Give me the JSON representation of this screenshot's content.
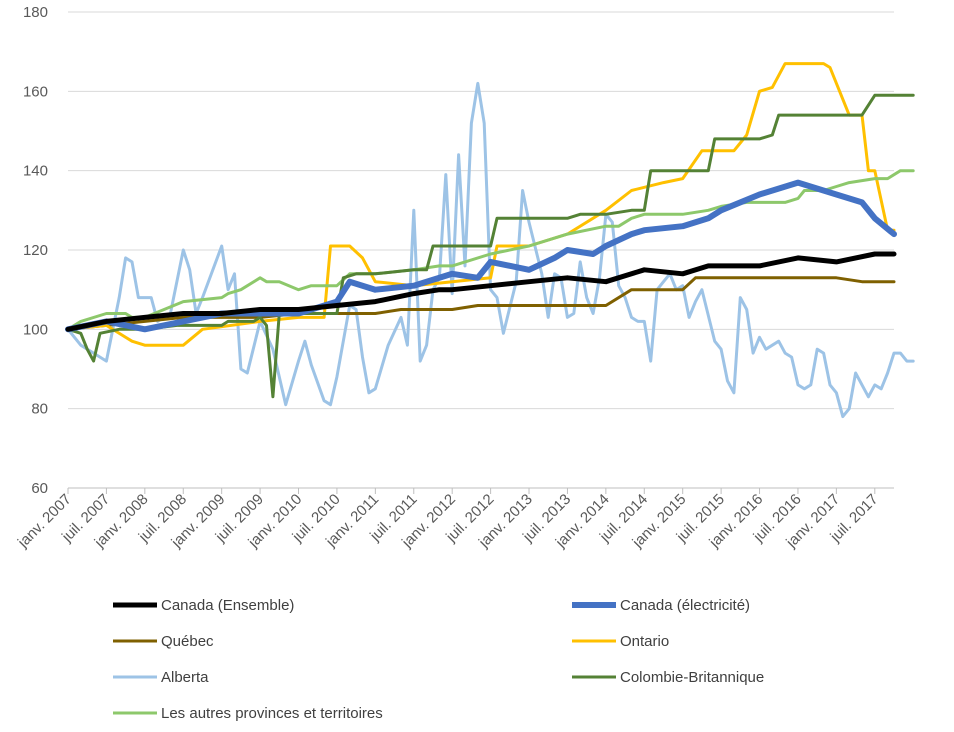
{
  "chart_data": {
    "type": "line",
    "title": "",
    "xlabel": "",
    "ylabel": "",
    "ylim": [
      60,
      180
    ],
    "y_ticks": [
      60,
      80,
      100,
      120,
      140,
      160,
      180
    ],
    "grid": "horizontal",
    "legend_position": "bottom",
    "x_start": "janv. 2007",
    "x_end": "oct. 2017",
    "x_tick_labels": [
      "janv. 2007",
      "juil. 2007",
      "janv. 2008",
      "juil. 2008",
      "janv. 2009",
      "juil. 2009",
      "janv. 2010",
      "juil. 2010",
      "janv. 2011",
      "juil. 2011",
      "janv. 2012",
      "juil. 2012",
      "janv. 2013",
      "juil. 2013",
      "janv. 2014",
      "juil. 2014",
      "janv. 2015",
      "juil. 2015",
      "janv. 2016",
      "juil. 2016",
      "janv. 2017",
      "juil. 2017"
    ],
    "series": [
      {
        "name": "Canada (Ensemble)",
        "color": "#000000",
        "width": 5,
        "points": [
          [
            0,
            100
          ],
          [
            6,
            102
          ],
          [
            12,
            103
          ],
          [
            18,
            104
          ],
          [
            24,
            104
          ],
          [
            30,
            105
          ],
          [
            36,
            105
          ],
          [
            42,
            106
          ],
          [
            48,
            107
          ],
          [
            54,
            109
          ],
          [
            58,
            110
          ],
          [
            60,
            110
          ],
          [
            66,
            111
          ],
          [
            72,
            112
          ],
          [
            78,
            113
          ],
          [
            84,
            112
          ],
          [
            90,
            115
          ],
          [
            96,
            114
          ],
          [
            100,
            116
          ],
          [
            108,
            116
          ],
          [
            114,
            118
          ],
          [
            120,
            117
          ],
          [
            126,
            119
          ],
          [
            129,
            119
          ]
        ]
      },
      {
        "name": "Canada (électricité)",
        "color": "#4472C4",
        "width": 6,
        "points": [
          [
            0,
            100
          ],
          [
            6,
            102
          ],
          [
            12,
            100
          ],
          [
            18,
            102
          ],
          [
            24,
            104
          ],
          [
            30,
            104
          ],
          [
            36,
            104
          ],
          [
            42,
            107
          ],
          [
            44,
            112
          ],
          [
            48,
            110
          ],
          [
            54,
            111
          ],
          [
            60,
            114
          ],
          [
            64,
            113
          ],
          [
            66,
            117
          ],
          [
            72,
            115
          ],
          [
            76,
            118
          ],
          [
            78,
            120
          ],
          [
            82,
            119
          ],
          [
            84,
            121
          ],
          [
            88,
            124
          ],
          [
            90,
            125
          ],
          [
            96,
            126
          ],
          [
            100,
            128
          ],
          [
            102,
            130
          ],
          [
            108,
            134
          ],
          [
            114,
            137
          ],
          [
            120,
            134
          ],
          [
            124,
            132
          ],
          [
            126,
            128
          ],
          [
            129,
            124
          ]
        ]
      },
      {
        "name": "Québec",
        "color": "#7F6000",
        "width": 3,
        "points": [
          [
            0,
            100
          ],
          [
            6,
            101
          ],
          [
            12,
            102
          ],
          [
            18,
            103
          ],
          [
            24,
            103
          ],
          [
            30,
            103
          ],
          [
            36,
            104
          ],
          [
            42,
            104
          ],
          [
            48,
            104
          ],
          [
            52,
            105
          ],
          [
            60,
            105
          ],
          [
            64,
            106
          ],
          [
            72,
            106
          ],
          [
            78,
            106
          ],
          [
            84,
            106
          ],
          [
            88,
            110
          ],
          [
            96,
            110
          ],
          [
            98,
            113
          ],
          [
            108,
            113
          ],
          [
            114,
            113
          ],
          [
            120,
            113
          ],
          [
            124,
            112
          ],
          [
            129,
            112
          ]
        ]
      },
      {
        "name": "Ontario",
        "color": "#FFC000",
        "width": 3,
        "points": [
          [
            0,
            100
          ],
          [
            6,
            101
          ],
          [
            10,
            97
          ],
          [
            12,
            96
          ],
          [
            18,
            96
          ],
          [
            21,
            100
          ],
          [
            30,
            102
          ],
          [
            36,
            103
          ],
          [
            40,
            103
          ],
          [
            41,
            121
          ],
          [
            44,
            121
          ],
          [
            46,
            118
          ],
          [
            48,
            112
          ],
          [
            54,
            111
          ],
          [
            60,
            112
          ],
          [
            66,
            113
          ],
          [
            67,
            121
          ],
          [
            72,
            121
          ],
          [
            78,
            124
          ],
          [
            84,
            130
          ],
          [
            88,
            135
          ],
          [
            93,
            137
          ],
          [
            96,
            138
          ],
          [
            99,
            145
          ],
          [
            104,
            145
          ],
          [
            106,
            149
          ],
          [
            108,
            160
          ],
          [
            110,
            161
          ],
          [
            112,
            167
          ],
          [
            118,
            167
          ],
          [
            119,
            166
          ],
          [
            122,
            154
          ],
          [
            124,
            154
          ],
          [
            125,
            140
          ],
          [
            126,
            140
          ],
          [
            128,
            125
          ],
          [
            129,
            125
          ]
        ]
      },
      {
        "name": "Alberta",
        "color": "#9DC3E6",
        "width": 3,
        "points": [
          [
            0,
            100
          ],
          [
            2,
            96
          ],
          [
            4,
            94
          ],
          [
            6,
            92
          ],
          [
            8,
            108
          ],
          [
            9,
            118
          ],
          [
            10,
            117
          ],
          [
            11,
            108
          ],
          [
            13,
            108
          ],
          [
            14,
            102
          ],
          [
            16,
            104
          ],
          [
            18,
            120
          ],
          [
            19,
            115
          ],
          [
            20,
            104
          ],
          [
            21,
            108
          ],
          [
            24,
            121
          ],
          [
            25,
            110
          ],
          [
            26,
            114
          ],
          [
            27,
            90
          ],
          [
            28,
            89
          ],
          [
            30,
            102
          ],
          [
            32,
            95
          ],
          [
            34,
            81
          ],
          [
            36,
            92
          ],
          [
            37,
            97
          ],
          [
            38,
            91
          ],
          [
            40,
            82
          ],
          [
            41,
            81
          ],
          [
            42,
            88
          ],
          [
            44,
            106
          ],
          [
            45,
            105
          ],
          [
            46,
            93
          ],
          [
            47,
            84
          ],
          [
            48,
            85
          ],
          [
            50,
            96
          ],
          [
            52,
            103
          ],
          [
            53,
            96
          ],
          [
            54,
            130
          ],
          [
            55,
            92
          ],
          [
            56,
            96
          ],
          [
            57,
            110
          ],
          [
            58,
            113
          ],
          [
            59,
            139
          ],
          [
            60,
            109
          ],
          [
            61,
            144
          ],
          [
            62,
            116
          ],
          [
            63,
            152
          ],
          [
            64,
            162
          ],
          [
            65,
            152
          ],
          [
            66,
            110
          ],
          [
            67,
            108
          ],
          [
            68,
            99
          ],
          [
            70,
            112
          ],
          [
            71,
            135
          ],
          [
            72,
            127
          ],
          [
            74,
            114
          ],
          [
            75,
            103
          ],
          [
            76,
            114
          ],
          [
            77,
            113
          ],
          [
            78,
            103
          ],
          [
            79,
            104
          ],
          [
            80,
            117
          ],
          [
            81,
            108
          ],
          [
            82,
            104
          ],
          [
            83,
            113
          ],
          [
            84,
            129
          ],
          [
            85,
            127
          ],
          [
            86,
            111
          ],
          [
            87,
            108
          ],
          [
            88,
            103
          ],
          [
            89,
            102
          ],
          [
            90,
            102
          ],
          [
            91,
            92
          ],
          [
            92,
            110
          ],
          [
            93,
            112
          ],
          [
            94,
            114
          ],
          [
            95,
            110
          ],
          [
            96,
            111
          ],
          [
            97,
            103
          ],
          [
            98,
            107
          ],
          [
            99,
            110
          ],
          [
            101,
            97
          ],
          [
            102,
            95
          ],
          [
            103,
            87
          ],
          [
            104,
            84
          ],
          [
            105,
            108
          ],
          [
            106,
            105
          ],
          [
            107,
            94
          ],
          [
            108,
            98
          ],
          [
            109,
            95
          ],
          [
            110,
            96
          ],
          [
            111,
            97
          ],
          [
            112,
            94
          ],
          [
            113,
            93
          ],
          [
            114,
            86
          ],
          [
            115,
            85
          ],
          [
            116,
            86
          ],
          [
            117,
            95
          ],
          [
            118,
            94
          ],
          [
            119,
            86
          ],
          [
            120,
            84
          ],
          [
            121,
            78
          ],
          [
            122,
            80
          ],
          [
            123,
            89
          ],
          [
            124,
            86
          ],
          [
            125,
            83
          ],
          [
            126,
            86
          ],
          [
            127,
            85
          ],
          [
            128,
            89
          ],
          [
            129,
            94
          ],
          [
            130,
            94
          ],
          [
            131,
            92
          ],
          [
            132,
            92
          ]
        ]
      },
      {
        "name": "Colombie-Britannique",
        "color": "#548235",
        "width": 3,
        "points": [
          [
            0,
            100
          ],
          [
            2,
            99
          ],
          [
            3,
            95
          ],
          [
            4,
            92
          ],
          [
            5,
            99
          ],
          [
            8,
            100
          ],
          [
            12,
            100
          ],
          [
            17,
            101
          ],
          [
            18,
            101
          ],
          [
            24,
            101
          ],
          [
            25,
            102
          ],
          [
            29,
            102
          ],
          [
            30,
            103
          ],
          [
            31,
            101
          ],
          [
            32,
            83
          ],
          [
            33,
            104
          ],
          [
            36,
            104
          ],
          [
            42,
            104
          ],
          [
            43,
            113
          ],
          [
            45,
            114
          ],
          [
            48,
            114
          ],
          [
            54,
            115
          ],
          [
            56,
            115
          ],
          [
            57,
            121
          ],
          [
            66,
            121
          ],
          [
            67,
            128
          ],
          [
            78,
            128
          ],
          [
            80,
            129
          ],
          [
            84,
            129
          ],
          [
            88,
            130
          ],
          [
            90,
            130
          ],
          [
            91,
            140
          ],
          [
            98,
            140
          ],
          [
            100,
            140
          ],
          [
            101,
            148
          ],
          [
            108,
            148
          ],
          [
            110,
            149
          ],
          [
            111,
            154
          ],
          [
            120,
            154
          ],
          [
            124,
            154
          ],
          [
            126,
            159
          ],
          [
            132,
            159
          ]
        ]
      },
      {
        "name": "Les autres provinces et territoires",
        "color": "#8DC86B",
        "width": 3,
        "points": [
          [
            0,
            100
          ],
          [
            2,
            102
          ],
          [
            6,
            104
          ],
          [
            9,
            104
          ],
          [
            10,
            103
          ],
          [
            12,
            103
          ],
          [
            18,
            107
          ],
          [
            24,
            108
          ],
          [
            25,
            109
          ],
          [
            27,
            110
          ],
          [
            30,
            113
          ],
          [
            31,
            112
          ],
          [
            33,
            112
          ],
          [
            36,
            110
          ],
          [
            38,
            111
          ],
          [
            42,
            111
          ],
          [
            44,
            114
          ],
          [
            48,
            114
          ],
          [
            54,
            115
          ],
          [
            58,
            116
          ],
          [
            60,
            116
          ],
          [
            66,
            119
          ],
          [
            72,
            121
          ],
          [
            76,
            123
          ],
          [
            78,
            124
          ],
          [
            84,
            126
          ],
          [
            86,
            126
          ],
          [
            88,
            128
          ],
          [
            90,
            129
          ],
          [
            96,
            129
          ],
          [
            100,
            130
          ],
          [
            102,
            131
          ],
          [
            106,
            132
          ],
          [
            108,
            132
          ],
          [
            112,
            132
          ],
          [
            114,
            133
          ],
          [
            115,
            135
          ],
          [
            118,
            135
          ],
          [
            120,
            136
          ],
          [
            122,
            137
          ],
          [
            126,
            138
          ],
          [
            128,
            138
          ],
          [
            130,
            140
          ],
          [
            132,
            140
          ]
        ]
      }
    ]
  }
}
